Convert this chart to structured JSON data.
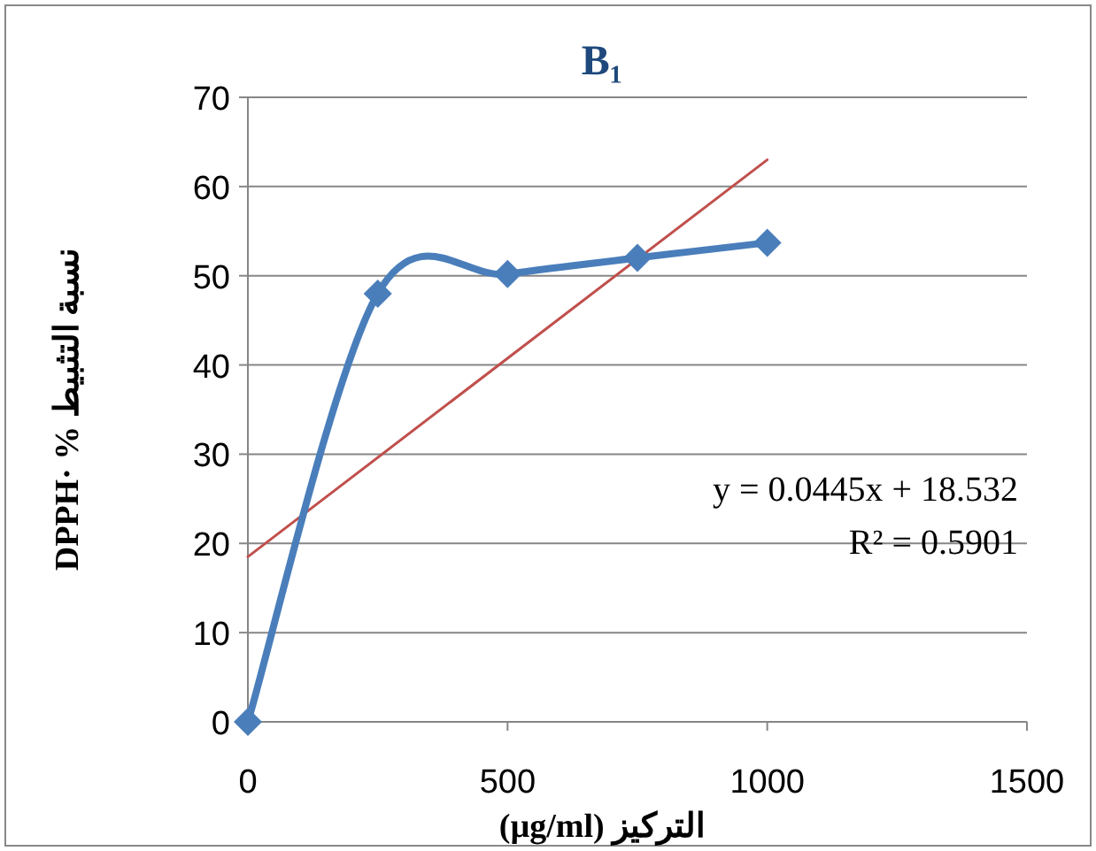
{
  "chart_data": {
    "type": "line",
    "title": "B₁",
    "xlabel": "(µg/ml) التركيز",
    "ylabel": "DPPH· % نسبة التثبيط",
    "x": [
      0,
      250,
      500,
      750,
      1000
    ],
    "series": [
      {
        "color": "#4a7ebb",
        "values": [
          0,
          48,
          50.2,
          52,
          53.7
        ],
        "marker": "diamond",
        "line_style": "solid"
      },
      {
        "color": "#c0504d",
        "x": [
          0,
          1000
        ],
        "values": [
          18.5,
          63.0
        ],
        "marker": "none",
        "line_style": "solid"
      }
    ],
    "xlim": [
      0,
      1500
    ],
    "xticks": [
      0,
      500,
      1000,
      1500
    ],
    "ylim": [
      0,
      70
    ],
    "yticks": [
      0,
      10,
      20,
      30,
      40,
      50,
      60,
      70
    ],
    "grid": "y",
    "annotations": [
      "y = 0.0445x + 18.532",
      "R² = 0.5901"
    ]
  }
}
